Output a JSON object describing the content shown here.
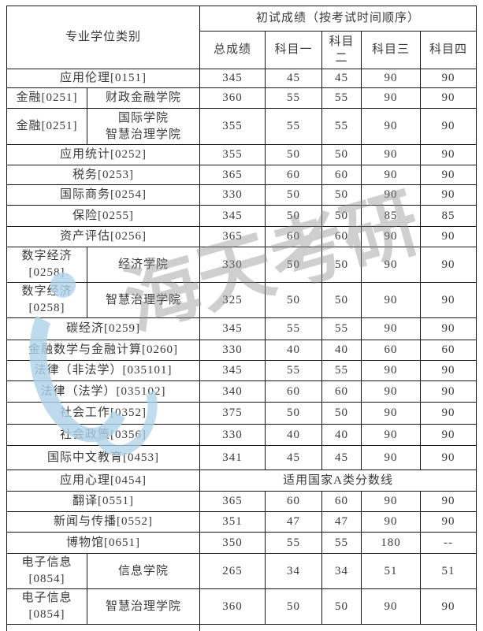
{
  "table": {
    "header": {
      "category_label": "专业学位类别",
      "score_group_label": "初试成绩（按考试时间顺序）",
      "columns": [
        "总成绩",
        "科目一",
        "科目二",
        "科目三",
        "科目四"
      ]
    },
    "rows": [
      {
        "type": "simple",
        "category": "应用伦理[0151]",
        "scores": [
          "345",
          "45",
          "45",
          "90",
          "90"
        ]
      },
      {
        "type": "college",
        "category": "金融[0251]",
        "college": "财政金融学院",
        "scores": [
          "360",
          "55",
          "55",
          "90",
          "90"
        ]
      },
      {
        "type": "college",
        "category": "金融[0251]",
        "college": "国际学院\n智慧治理学院",
        "scores": [
          "355",
          "55",
          "55",
          "90",
          "90"
        ]
      },
      {
        "type": "simple",
        "category": "应用统计[0252]",
        "scores": [
          "355",
          "50",
          "50",
          "90",
          "90"
        ]
      },
      {
        "type": "simple",
        "category": "税务[0253]",
        "scores": [
          "365",
          "60",
          "60",
          "90",
          "90"
        ]
      },
      {
        "type": "simple",
        "category": "国际商务[0254]",
        "scores": [
          "330",
          "50",
          "50",
          "90",
          "90"
        ]
      },
      {
        "type": "simple",
        "category": "保险[0255]",
        "scores": [
          "345",
          "50",
          "50",
          "85",
          "85"
        ]
      },
      {
        "type": "simple",
        "category": "资产评估[0256]",
        "scores": [
          "365",
          "60",
          "60",
          "90",
          "90"
        ]
      },
      {
        "type": "college",
        "category": "数字经济\n[0258]",
        "college": "经济学院",
        "scores": [
          "330",
          "50",
          "50",
          "90",
          "90"
        ]
      },
      {
        "type": "college",
        "category": "数字经济\n[0258]",
        "college": "智慧治理学院",
        "scores": [
          "325",
          "50",
          "50",
          "90",
          "90"
        ]
      },
      {
        "type": "simple",
        "category": "碳经济[0259]",
        "scores": [
          "345",
          "55",
          "55",
          "90",
          "90"
        ]
      },
      {
        "type": "simple",
        "category": "金融数学与金融计算[0260]",
        "scores": [
          "330",
          "40",
          "40",
          "60",
          "60"
        ]
      },
      {
        "type": "simple",
        "category": "法律（非法学）[035101]",
        "scores": [
          "345",
          "55",
          "55",
          "90",
          "90"
        ]
      },
      {
        "type": "simple",
        "category": "法律（法学）[035102]",
        "scores": [
          "340",
          "60",
          "60",
          "90",
          "90"
        ]
      },
      {
        "type": "simple",
        "category": "社会工作[0352]",
        "scores": [
          "375",
          "50",
          "50",
          "90",
          "90"
        ]
      },
      {
        "type": "simple",
        "category": "社会政策[0356]",
        "scores": [
          "330",
          "40",
          "40",
          "90",
          "90"
        ]
      },
      {
        "type": "simple",
        "category": "国际中文教育[0453]",
        "scores": [
          "341",
          "45",
          "45",
          "90",
          "90"
        ]
      },
      {
        "type": "note",
        "category": "应用心理[0454]",
        "note": "适用国家A类分数线"
      },
      {
        "type": "simple",
        "category": "翻译[0551]",
        "scores": [
          "365",
          "60",
          "60",
          "90",
          "90"
        ]
      },
      {
        "type": "simple",
        "category": "新闻与传播[0552]",
        "scores": [
          "351",
          "47",
          "47",
          "90",
          "90"
        ]
      },
      {
        "type": "simple",
        "category": "博物馆[0651]",
        "scores": [
          "350",
          "55",
          "55",
          "180",
          "--"
        ]
      },
      {
        "type": "college",
        "category": "电子信息\n[0854]",
        "college": "信息学院",
        "scores": [
          "265",
          "34",
          "34",
          "51",
          "51"
        ]
      },
      {
        "type": "college",
        "category": "电子信息\n[0854]",
        "college": "智慧治理学院",
        "scores": [
          "360",
          "50",
          "50",
          "90",
          "90"
        ]
      },
      {
        "type": "note",
        "category": "",
        "note": ""
      }
    ]
  },
  "watermark": {
    "text": "海天考研",
    "text_color": "#8f8f8f",
    "logo_color": "#aed3e9"
  }
}
